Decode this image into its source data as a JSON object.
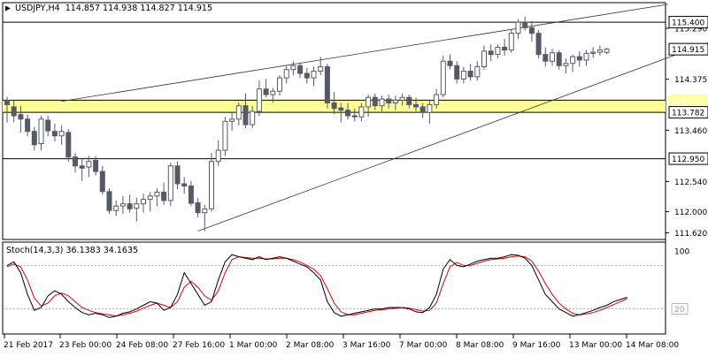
{
  "symbol_line": {
    "symbol": "USDJPY,H4",
    "open": "114.857",
    "high": "114.938",
    "low": "114.827",
    "close": "114.915"
  },
  "price_labels": [
    {
      "text": "115.290",
      "value": 115.29
    },
    {
      "text": "114.375",
      "value": 114.375
    },
    {
      "text": "113.460",
      "value": 113.46
    },
    {
      "text": "112.540",
      "value": 112.54
    },
    {
      "text": "112.000",
      "value": 112.0
    },
    {
      "text": "111.620",
      "value": 111.62
    }
  ],
  "horizontal_levels": [
    {
      "text": "115.400",
      "value": 115.4
    },
    {
      "text": "114.915",
      "value": 114.915
    },
    {
      "text": "114.000",
      "value": 114.0
    },
    {
      "text": "113.782",
      "value": 113.782
    },
    {
      "text": "112.950",
      "value": 112.95
    }
  ],
  "support_zone": {
    "from": 113.782,
    "to": 114.0,
    "color": "#ffff99"
  },
  "stoch": {
    "label": "Stoch(14,3,3) 36.1383 34.1635",
    "k_value": 36.1383,
    "d_value": 34.1635,
    "scale_top": "100",
    "scale_low": "20",
    "k_color": "#000000",
    "d_color": "#e00000"
  },
  "time_labels": [
    "21 Feb 2017",
    "23 Feb 00:00",
    "24 Feb 08:00",
    "27 Feb 16:00",
    "1 Mar 00:00",
    "2 Mar 08:00",
    "3 Mar 16:00",
    "7 Mar 00:00",
    "8 Mar 08:00",
    "9 Mar 16:00",
    "13 Mar 00:00",
    "14 Mar 08:00"
  ],
  "colors": {
    "bull": "#ffffff",
    "bear": "#555b66",
    "outline": "#555b66",
    "zone": "#ffff99"
  },
  "chart_data": {
    "type": "candlestick",
    "title": "USDJPY,H4",
    "ylim": [
      111.5,
      115.75
    ],
    "candles": [
      {
        "o": 114.0,
        "h": 114.06,
        "l": 113.6,
        "c": 113.92
      },
      {
        "o": 113.88,
        "h": 114.0,
        "l": 113.6,
        "c": 113.72
      },
      {
        "o": 113.74,
        "h": 113.9,
        "l": 113.42,
        "c": 113.66
      },
      {
        "o": 113.66,
        "h": 113.74,
        "l": 113.35,
        "c": 113.44
      },
      {
        "o": 113.44,
        "h": 113.52,
        "l": 113.1,
        "c": 113.2
      },
      {
        "o": 113.22,
        "h": 113.72,
        "l": 113.1,
        "c": 113.66
      },
      {
        "o": 113.64,
        "h": 113.72,
        "l": 113.35,
        "c": 113.45
      },
      {
        "o": 113.44,
        "h": 113.58,
        "l": 113.26,
        "c": 113.36
      },
      {
        "o": 113.36,
        "h": 113.55,
        "l": 113.2,
        "c": 113.44
      },
      {
        "o": 113.42,
        "h": 113.48,
        "l": 112.9,
        "c": 112.98
      },
      {
        "o": 112.98,
        "h": 113.05,
        "l": 112.7,
        "c": 112.82
      },
      {
        "o": 112.82,
        "h": 112.95,
        "l": 112.55,
        "c": 112.78
      },
      {
        "o": 112.8,
        "h": 113.0,
        "l": 112.62,
        "c": 112.9
      },
      {
        "o": 112.92,
        "h": 113.0,
        "l": 112.65,
        "c": 112.72
      },
      {
        "o": 112.72,
        "h": 112.82,
        "l": 112.3,
        "c": 112.36
      },
      {
        "o": 112.36,
        "h": 112.42,
        "l": 111.96,
        "c": 112.02
      },
      {
        "o": 112.02,
        "h": 112.2,
        "l": 111.92,
        "c": 112.1
      },
      {
        "o": 112.1,
        "h": 112.28,
        "l": 111.96,
        "c": 112.14
      },
      {
        "o": 112.14,
        "h": 112.3,
        "l": 111.98,
        "c": 112.05
      },
      {
        "o": 112.06,
        "h": 112.25,
        "l": 111.82,
        "c": 112.14
      },
      {
        "o": 112.14,
        "h": 112.32,
        "l": 111.98,
        "c": 112.22
      },
      {
        "o": 112.22,
        "h": 112.35,
        "l": 112.0,
        "c": 112.28
      },
      {
        "o": 112.28,
        "h": 112.42,
        "l": 112.1,
        "c": 112.35
      },
      {
        "o": 112.35,
        "h": 112.52,
        "l": 112.12,
        "c": 112.2
      },
      {
        "o": 112.2,
        "h": 112.88,
        "l": 112.1,
        "c": 112.82
      },
      {
        "o": 112.82,
        "h": 112.9,
        "l": 112.4,
        "c": 112.5
      },
      {
        "o": 112.5,
        "h": 112.62,
        "l": 112.32,
        "c": 112.46
      },
      {
        "o": 112.46,
        "h": 112.55,
        "l": 112.1,
        "c": 112.15
      },
      {
        "o": 112.16,
        "h": 112.25,
        "l": 111.9,
        "c": 111.98
      },
      {
        "o": 111.98,
        "h": 112.12,
        "l": 111.65,
        "c": 112.05
      },
      {
        "o": 112.05,
        "h": 113.05,
        "l": 112.0,
        "c": 112.9
      },
      {
        "o": 112.9,
        "h": 113.28,
        "l": 112.82,
        "c": 113.1
      },
      {
        "o": 113.1,
        "h": 113.7,
        "l": 113.0,
        "c": 113.62
      },
      {
        "o": 113.62,
        "h": 113.78,
        "l": 113.45,
        "c": 113.66
      },
      {
        "o": 113.66,
        "h": 113.96,
        "l": 113.55,
        "c": 113.9
      },
      {
        "o": 113.9,
        "h": 114.12,
        "l": 113.5,
        "c": 113.56
      },
      {
        "o": 113.56,
        "h": 113.9,
        "l": 113.5,
        "c": 113.8
      },
      {
        "o": 113.8,
        "h": 114.35,
        "l": 113.72,
        "c": 114.2
      },
      {
        "o": 114.2,
        "h": 114.38,
        "l": 114.05,
        "c": 114.1
      },
      {
        "o": 114.1,
        "h": 114.22,
        "l": 113.96,
        "c": 114.16
      },
      {
        "o": 114.16,
        "h": 114.45,
        "l": 114.08,
        "c": 114.4
      },
      {
        "o": 114.4,
        "h": 114.62,
        "l": 114.3,
        "c": 114.55
      },
      {
        "o": 114.55,
        "h": 114.7,
        "l": 114.45,
        "c": 114.62
      },
      {
        "o": 114.62,
        "h": 114.68,
        "l": 114.4,
        "c": 114.48
      },
      {
        "o": 114.48,
        "h": 114.58,
        "l": 114.3,
        "c": 114.4
      },
      {
        "o": 114.4,
        "h": 114.6,
        "l": 114.25,
        "c": 114.52
      },
      {
        "o": 114.52,
        "h": 114.78,
        "l": 114.45,
        "c": 114.6
      },
      {
        "o": 114.6,
        "h": 114.65,
        "l": 113.85,
        "c": 113.95
      },
      {
        "o": 113.95,
        "h": 114.15,
        "l": 113.75,
        "c": 113.85
      },
      {
        "o": 113.86,
        "h": 113.95,
        "l": 113.6,
        "c": 113.82
      },
      {
        "o": 113.82,
        "h": 113.95,
        "l": 113.65,
        "c": 113.72
      },
      {
        "o": 113.72,
        "h": 113.85,
        "l": 113.62,
        "c": 113.7
      },
      {
        "o": 113.7,
        "h": 113.95,
        "l": 113.62,
        "c": 113.88
      },
      {
        "o": 113.88,
        "h": 114.1,
        "l": 113.7,
        "c": 114.05
      },
      {
        "o": 114.05,
        "h": 114.12,
        "l": 113.82,
        "c": 113.9
      },
      {
        "o": 113.9,
        "h": 114.08,
        "l": 113.8,
        "c": 114.02
      },
      {
        "o": 114.02,
        "h": 114.1,
        "l": 113.85,
        "c": 113.95
      },
      {
        "o": 113.95,
        "h": 114.08,
        "l": 113.82,
        "c": 114.0
      },
      {
        "o": 114.0,
        "h": 114.12,
        "l": 113.9,
        "c": 114.05
      },
      {
        "o": 114.05,
        "h": 114.1,
        "l": 113.85,
        "c": 113.92
      },
      {
        "o": 113.92,
        "h": 114.05,
        "l": 113.8,
        "c": 113.88
      },
      {
        "o": 113.88,
        "h": 113.95,
        "l": 113.68,
        "c": 113.78
      },
      {
        "o": 113.78,
        "h": 114.0,
        "l": 113.58,
        "c": 113.92
      },
      {
        "o": 113.92,
        "h": 114.2,
        "l": 113.85,
        "c": 114.1
      },
      {
        "o": 114.1,
        "h": 114.8,
        "l": 114.05,
        "c": 114.7
      },
      {
        "o": 114.7,
        "h": 114.82,
        "l": 114.55,
        "c": 114.62
      },
      {
        "o": 114.62,
        "h": 114.7,
        "l": 114.3,
        "c": 114.38
      },
      {
        "o": 114.38,
        "h": 114.6,
        "l": 114.3,
        "c": 114.52
      },
      {
        "o": 114.52,
        "h": 114.65,
        "l": 114.35,
        "c": 114.42
      },
      {
        "o": 114.42,
        "h": 114.7,
        "l": 114.35,
        "c": 114.6
      },
      {
        "o": 114.6,
        "h": 114.98,
        "l": 114.55,
        "c": 114.88
      },
      {
        "o": 114.88,
        "h": 115.0,
        "l": 114.7,
        "c": 114.82
      },
      {
        "o": 114.82,
        "h": 115.0,
        "l": 114.75,
        "c": 114.95
      },
      {
        "o": 114.95,
        "h": 115.1,
        "l": 114.8,
        "c": 114.9
      },
      {
        "o": 114.9,
        "h": 115.28,
        "l": 114.85,
        "c": 115.2
      },
      {
        "o": 115.2,
        "h": 115.45,
        "l": 115.1,
        "c": 115.4
      },
      {
        "o": 115.4,
        "h": 115.5,
        "l": 115.25,
        "c": 115.3
      },
      {
        "o": 115.3,
        "h": 115.42,
        "l": 115.05,
        "c": 115.2
      },
      {
        "o": 115.2,
        "h": 115.26,
        "l": 114.75,
        "c": 114.82
      },
      {
        "o": 114.82,
        "h": 114.95,
        "l": 114.6,
        "c": 114.7
      },
      {
        "o": 114.7,
        "h": 114.92,
        "l": 114.62,
        "c": 114.85
      },
      {
        "o": 114.85,
        "h": 114.9,
        "l": 114.55,
        "c": 114.62
      },
      {
        "o": 114.62,
        "h": 114.75,
        "l": 114.48,
        "c": 114.66
      },
      {
        "o": 114.66,
        "h": 114.82,
        "l": 114.5,
        "c": 114.78
      },
      {
        "o": 114.78,
        "h": 114.88,
        "l": 114.6,
        "c": 114.72
      },
      {
        "o": 114.72,
        "h": 114.9,
        "l": 114.62,
        "c": 114.84
      },
      {
        "o": 114.84,
        "h": 114.95,
        "l": 114.76,
        "c": 114.86
      },
      {
        "o": 114.86,
        "h": 114.98,
        "l": 114.8,
        "c": 114.9
      },
      {
        "o": 114.857,
        "h": 114.938,
        "l": 114.827,
        "c": 114.915
      }
    ],
    "trendlines": [
      {
        "name": "upper channel",
        "from": {
          "bar": 8,
          "price": 113.98
        },
        "to": {
          "bar": 97,
          "price": 115.72
        }
      },
      {
        "name": "lower channel",
        "from": {
          "bar": 28,
          "price": 111.65
        },
        "to": {
          "bar": 110,
          "price": 115.35
        }
      }
    ],
    "stochastic": {
      "ylim": [
        0,
        100
      ],
      "levels": [
        20,
        80
      ],
      "k": [
        80,
        85,
        70,
        40,
        18,
        22,
        38,
        45,
        40,
        30,
        22,
        15,
        12,
        14,
        12,
        8,
        10,
        14,
        16,
        20,
        25,
        30,
        28,
        18,
        22,
        40,
        70,
        55,
        40,
        25,
        30,
        60,
        85,
        95,
        92,
        90,
        88,
        92,
        88,
        90,
        92,
        90,
        86,
        82,
        78,
        70,
        60,
        30,
        15,
        10,
        12,
        14,
        16,
        18,
        20,
        20,
        22,
        22,
        22,
        20,
        16,
        15,
        22,
        40,
        75,
        88,
        80,
        78,
        82,
        86,
        88,
        90,
        90,
        92,
        95,
        94,
        90,
        80,
        60,
        40,
        30,
        20,
        15,
        10,
        12,
        15,
        18,
        22,
        25,
        30,
        33,
        36.1383
      ],
      "d": [
        78,
        82,
        78,
        60,
        35,
        24,
        28,
        38,
        42,
        38,
        30,
        22,
        18,
        15,
        13,
        12,
        10,
        12,
        14,
        17,
        21,
        25,
        28,
        25,
        22,
        30,
        50,
        58,
        50,
        38,
        32,
        45,
        70,
        88,
        92,
        91,
        90,
        90,
        89,
        89,
        90,
        90,
        88,
        85,
        80,
        75,
        66,
        48,
        28,
        16,
        12,
        12,
        14,
        16,
        18,
        19,
        20,
        21,
        22,
        21,
        19,
        17,
        18,
        28,
        55,
        78,
        84,
        80,
        80,
        83,
        86,
        88,
        89,
        90,
        92,
        93,
        92,
        86,
        72,
        55,
        40,
        28,
        20,
        14,
        12,
        13,
        15,
        18,
        22,
        26,
        30,
        34.1635
      ]
    }
  }
}
